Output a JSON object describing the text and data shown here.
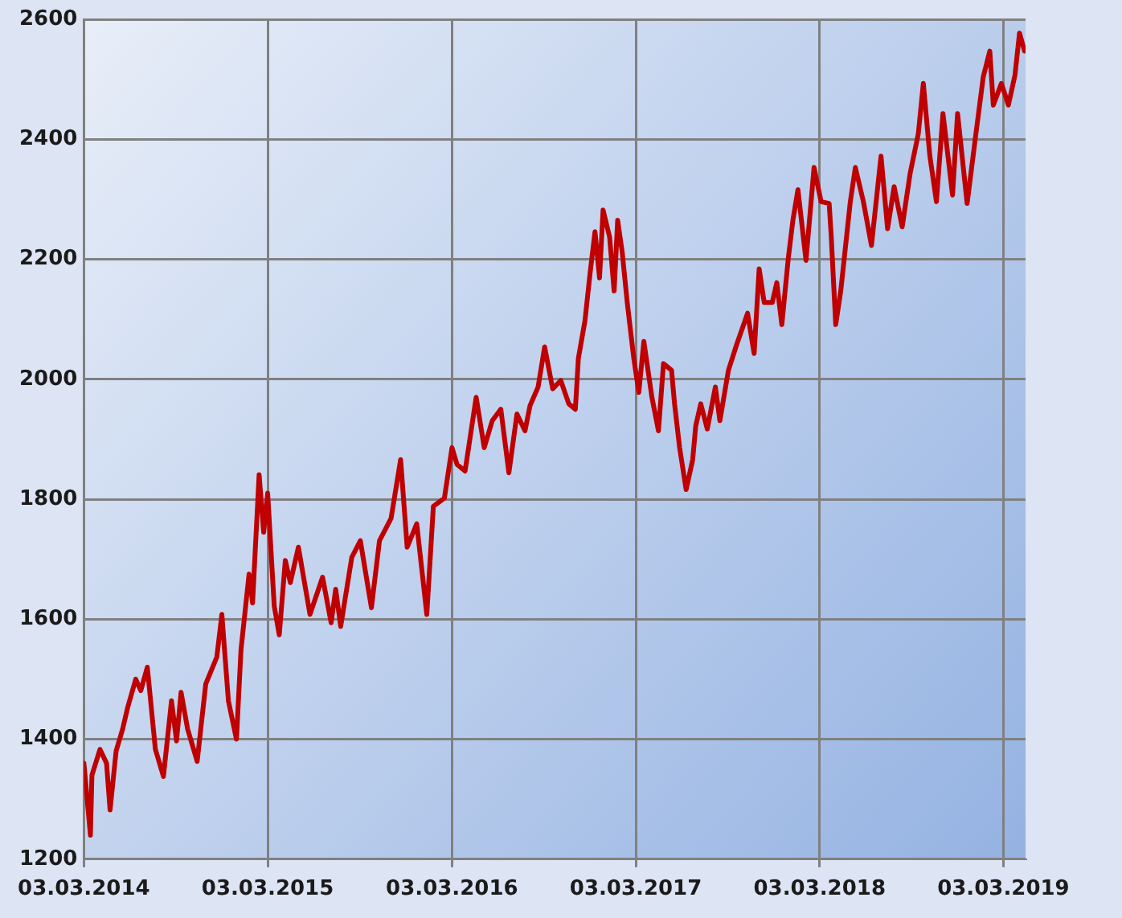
{
  "chart_data": {
    "type": "line",
    "x": [
      "2014-03-03",
      "2014-03-16",
      "2014-03-19",
      "2014-04-04",
      "2014-04-17",
      "2014-04-24",
      "2014-05-06",
      "2014-05-19",
      "2014-05-29",
      "2014-06-14",
      "2014-06-24",
      "2014-07-07",
      "2014-07-23",
      "2014-08-08",
      "2014-08-24",
      "2014-09-03",
      "2014-09-12",
      "2014-09-25",
      "2014-10-14",
      "2014-10-31",
      "2014-11-22",
      "2014-12-02",
      "2014-12-15",
      "2014-12-31",
      "2015-01-09",
      "2015-01-25",
      "2015-02-01",
      "2015-02-14",
      "2015-02-23",
      "2015-03-03",
      "2015-03-16",
      "2015-03-26",
      "2015-04-07",
      "2015-04-17",
      "2015-05-03",
      "2015-05-26",
      "2015-06-20",
      "2015-07-07",
      "2015-07-16",
      "2015-07-26",
      "2015-08-17",
      "2015-09-03",
      "2015-09-25",
      "2015-10-11",
      "2015-11-03",
      "2015-11-22",
      "2015-12-05",
      "2015-12-24",
      "2016-01-13",
      "2016-01-26",
      "2016-02-17",
      "2016-03-03",
      "2016-03-13",
      "2016-03-29",
      "2016-04-20",
      "2016-05-06",
      "2016-05-22",
      "2016-06-08",
      "2016-06-24",
      "2016-07-10",
      "2016-07-26",
      "2016-08-05",
      "2016-08-21",
      "2016-09-03",
      "2016-09-19",
      "2016-10-05",
      "2016-10-21",
      "2016-11-03",
      "2016-11-09",
      "2016-11-22",
      "2016-12-02",
      "2016-12-12",
      "2016-12-21",
      "2016-12-28",
      "2017-01-10",
      "2017-01-19",
      "2017-01-26",
      "2017-02-04",
      "2017-02-14",
      "2017-02-27",
      "2017-03-09",
      "2017-03-19",
      "2017-04-04",
      "2017-04-17",
      "2017-04-27",
      "2017-05-13",
      "2017-05-19",
      "2017-05-29",
      "2017-06-11",
      "2017-06-24",
      "2017-06-30",
      "2017-07-10",
      "2017-07-23",
      "2017-08-08",
      "2017-08-17",
      "2017-09-03",
      "2017-09-19",
      "2017-10-11",
      "2017-10-24",
      "2017-11-03",
      "2017-11-13",
      "2017-11-29",
      "2017-12-08",
      "2017-12-18",
      "2017-12-31",
      "2018-01-09",
      "2018-01-19",
      "2018-02-04",
      "2018-02-20",
      "2018-03-06",
      "2018-03-22",
      "2018-03-26",
      "2018-04-04",
      "2018-04-14",
      "2018-05-03",
      "2018-05-13",
      "2018-05-29",
      "2018-06-14",
      "2018-07-03",
      "2018-07-16",
      "2018-07-29",
      "2018-08-14",
      "2018-08-30",
      "2018-09-15",
      "2018-09-25",
      "2018-10-08",
      "2018-10-21",
      "2018-11-03",
      "2018-11-22",
      "2018-12-02",
      "2018-12-21",
      "2019-01-06",
      "2019-01-22",
      "2019-02-04",
      "2019-02-11",
      "2019-02-27",
      "2019-03-13",
      "2019-03-26",
      "2019-04-04",
      "2019-04-14"
    ],
    "series": [
      {
        "color": "#c00000",
        "values": [
          1360,
          1240,
          1340,
          1383,
          1360,
          1282,
          1380,
          1417,
          1453,
          1500,
          1481,
          1520,
          1383,
          1338,
          1464,
          1397,
          1478,
          1417,
          1363,
          1492,
          1537,
          1608,
          1464,
          1400,
          1549,
          1675,
          1627,
          1841,
          1745,
          1810,
          1622,
          1574,
          1698,
          1661,
          1720,
          1608,
          1670,
          1594,
          1650,
          1588,
          1703,
          1731,
          1619,
          1731,
          1768,
          1866,
          1720,
          1759,
          1608,
          1788,
          1802,
          1886,
          1858,
          1847,
          1970,
          1886,
          1931,
          1950,
          1844,
          1942,
          1914,
          1956,
          1987,
          2054,
          1984,
          1998,
          1959,
          1950,
          2035,
          2097,
          2175,
          2246,
          2169,
          2282,
          2237,
          2147,
          2265,
          2212,
          2128,
          2035,
          1978,
          2063,
          1970,
          1914,
          2026,
          2015,
          1959,
          1886,
          1816,
          1866,
          1922,
          1959,
          1917,
          1987,
          1931,
          2015,
          2057,
          2110,
          2043,
          2184,
          2128,
          2128,
          2161,
          2091,
          2203,
          2265,
          2316,
          2198,
          2353,
          2296,
          2293,
          2240,
          2091,
          2147,
          2296,
          2353,
          2296,
          2223,
          2372,
          2251,
          2321,
          2254,
          2344,
          2409,
          2493,
          2372,
          2296,
          2443,
          2307,
          2443,
          2293,
          2400,
          2504,
          2547,
          2457,
          2493,
          2457,
          2507,
          2577,
          2547
        ]
      }
    ],
    "xlim": [
      "2014-03-03",
      "2019-04-16"
    ],
    "xticks": [
      {
        "value": "2014-03-03",
        "label": "03.03.2014"
      },
      {
        "value": "2015-03-03",
        "label": "03.03.2015"
      },
      {
        "value": "2016-03-03",
        "label": "03.03.2016"
      },
      {
        "value": "2017-03-03",
        "label": "03.03.2017"
      },
      {
        "value": "2018-03-03",
        "label": "03.03.2018"
      },
      {
        "value": "2019-03-03",
        "label": "03.03.2019"
      }
    ],
    "ylim": [
      1200,
      2600
    ],
    "yticks": [
      1200,
      1400,
      1600,
      1800,
      2000,
      2200,
      2400,
      2600
    ],
    "grid": true,
    "marker": "none",
    "line_style": "solid"
  }
}
